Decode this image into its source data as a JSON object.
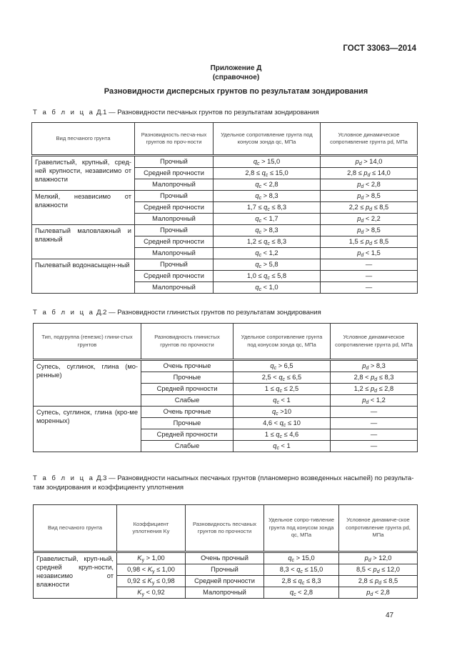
{
  "header": {
    "standard": "ГОСТ 33063—2014"
  },
  "appendix": {
    "title": "Приложение Д",
    "subtitle": "(справочное)",
    "heading": "Разновидности дисперсных грунтов по результатам зондирования"
  },
  "table1": {
    "label": "Т а б л и ц а",
    "caption": "Д.1 — Разновидности песчаных грунтов по результатам зондирования",
    "headers": [
      "Вид песчаного грунта",
      "Разновидность песча-ных грунтов по проч-ности",
      "Удельное сопротивление грунта под конусом зонда q",
      "Условное динамическое сопротивление грунта p"
    ],
    "header_units": [
      "",
      "",
      "c, МПа",
      "d, МПа"
    ],
    "groups": [
      {
        "soil": "Гравелистый, крупный, сред-ней крупности, независимо от влажности",
        "rows": [
          {
            "strength": "Прочный",
            "qc": {
              "pre": "",
              "v": "q",
              "s": "c",
              "post": " > 15,0"
            },
            "pd": {
              "pre": "",
              "v": "p",
              "s": "d",
              "post": " > 14,0"
            }
          },
          {
            "strength": "Средней прочности",
            "qc": {
              "pre": "2,8 ≤ ",
              "v": "q",
              "s": "c",
              "post": " ≤ 15,0"
            },
            "pd": {
              "pre": "2,8 ≤ ",
              "v": "p",
              "s": "d",
              "post": " ≤ 14,0"
            }
          },
          {
            "strength": "Малопрочный",
            "qc": {
              "pre": "",
              "v": "q",
              "s": "c",
              "post": " < 2,8"
            },
            "pd": {
              "pre": "",
              "v": "p",
              "s": "d",
              "post": " < 2,8"
            }
          }
        ]
      },
      {
        "soil": "Мелкий, независимо от влажности",
        "rows": [
          {
            "strength": "Прочный",
            "qc": {
              "pre": "",
              "v": "q",
              "s": "c",
              "post": " > 8,3"
            },
            "pd": {
              "pre": "",
              "v": "p",
              "s": "d",
              "post": " > 8,5"
            }
          },
          {
            "strength": "Средней прочности",
            "qc": {
              "pre": "1,7 ≤ ",
              "v": "q",
              "s": "c",
              "post": " ≤ 8,3"
            },
            "pd": {
              "pre": "2,2 ≤ ",
              "v": "p",
              "s": "d",
              "post": " ≤ 8,5"
            }
          },
          {
            "strength": "Малопрочный",
            "qc": {
              "pre": "",
              "v": "q",
              "s": "c",
              "post": " < 1,7"
            },
            "pd": {
              "pre": "",
              "v": "p",
              "s": "d",
              "post": " < 2,2"
            }
          }
        ]
      },
      {
        "soil": "Пылеватый маловлажный и влажный",
        "rows": [
          {
            "strength": "Прочный",
            "qc": {
              "pre": "",
              "v": "q",
              "s": "c",
              "post": " > 8,3"
            },
            "pd": {
              "pre": "",
              "v": "p",
              "s": "d",
              "post": " > 8,5"
            }
          },
          {
            "strength": "Средней прочности",
            "qc": {
              "pre": "1,2 ≤ ",
              "v": "q",
              "s": "c",
              "post": " ≤ 8,3"
            },
            "pd": {
              "pre": "1,5 ≤ ",
              "v": "p",
              "s": "d",
              "post": " ≤ 8,5"
            }
          },
          {
            "strength": "Малопрочный",
            "qc": {
              "pre": "",
              "v": "q",
              "s": "c",
              "post": " < 1,2"
            },
            "pd": {
              "pre": "",
              "v": "p",
              "s": "d",
              "post": " < 1,5"
            }
          }
        ]
      },
      {
        "soil": "Пылеватый водонасыщен-ный",
        "rows": [
          {
            "strength": "Прочный",
            "qc": {
              "pre": "",
              "v": "q",
              "s": "c",
              "post": " > 5,8"
            },
            "pd": {
              "pre": "—"
            }
          },
          {
            "strength": "Средней прочности",
            "qc": {
              "pre": "1,0 ≤ ",
              "v": "q",
              "s": "c",
              "post": " ≤ 5,8"
            },
            "pd": {
              "pre": "—"
            }
          },
          {
            "strength": "Малопрочный",
            "qc": {
              "pre": "",
              "v": "q",
              "s": "c",
              "post": " < 1,0"
            },
            "pd": {
              "pre": "—"
            }
          }
        ]
      }
    ]
  },
  "table2": {
    "label": "Т а б л и ц а",
    "caption": "Д.2 — Разновидности глинистых грунтов по результатам зондирования",
    "headers": [
      "Тип, подгруппа (генезис) глини-стых грунтов",
      "Разновидность глинистых грунтов по прочности",
      "Удельное сопротивление грунта под конусом зонда q",
      "Условное динамическое сопротивление грунта p"
    ],
    "header_units": [
      "",
      "",
      "c, МПа",
      "d, МПа"
    ],
    "groups": [
      {
        "soil": "Супесь, суглинок, глина (мо-ренные)",
        "rows": [
          {
            "strength": "Очень прочные",
            "qc": {
              "pre": "",
              "v": "q",
              "s": "c",
              "post": " > 6,5"
            },
            "pd": {
              "pre": "",
              "v": "p",
              "s": "d",
              "post": " > 8,3"
            }
          },
          {
            "strength": "Прочные",
            "qc": {
              "pre": "2,5 < ",
              "v": "q",
              "s": "c",
              "post": " ≤ 6,5"
            },
            "pd": {
              "pre": "2,8 < ",
              "v": "p",
              "s": "d",
              "post": " ≤ 8,3"
            }
          },
          {
            "strength": "Средней прочности",
            "qc": {
              "pre": "1 ≤ ",
              "v": "q",
              "s": "c",
              "post": " ≤ 2,5"
            },
            "pd": {
              "pre": "1,2 ≤ ",
              "v": "p",
              "s": "d",
              "post": " ≤ 2,8"
            }
          },
          {
            "strength": "Слабые",
            "qc": {
              "pre": "",
              "v": "q",
              "s": "c",
              "post": " < 1"
            },
            "pd": {
              "pre": "",
              "v": "p",
              "s": "d",
              "post": " < 1,2"
            }
          }
        ]
      },
      {
        "soil": "Супесь, суглинок, глина (кро-ме моренных)",
        "rows": [
          {
            "strength": "Очень прочные",
            "qc": {
              "pre": "",
              "v": "q",
              "s": "c",
              "post": " >10"
            },
            "pd": {
              "pre": "—"
            }
          },
          {
            "strength": "Прочные",
            "qc": {
              "pre": "4,6 < ",
              "v": "q",
              "s": "c",
              "post": " ≤ 10"
            },
            "pd": {
              "pre": "—"
            }
          },
          {
            "strength": "Средней прочности",
            "qc": {
              "pre": "1 ≤ ",
              "v": "q",
              "s": "c",
              "post": " ≤ 4,6"
            },
            "pd": {
              "pre": "—"
            }
          },
          {
            "strength": "Слабые",
            "qc": {
              "pre": "",
              "v": "q",
              "s": "c",
              "post": " < 1"
            },
            "pd": {
              "pre": "—"
            }
          }
        ]
      }
    ]
  },
  "table3": {
    "label": "Т а б л и ц а",
    "caption": "Д.3 — Разновидности насыпных песчаных грунтов (планомерно возведенных насыпей) по результа-там зондирования и коэффициенту уплотнения",
    "headers": [
      "Вид песчаного грунта",
      "Коэффициент уплотнения K",
      "Разновидность песчаных грунтов по прочности",
      "Удельное сопро-тивление грунта под конусом зонда q",
      "Условное динамиче-ское сопротивление грунта p"
    ],
    "header_units": [
      "",
      "у",
      "",
      "c, МПа",
      "d, МПа"
    ],
    "groups": [
      {
        "soil": "Гравелистый, круп-ный, средней круп-ности, независимо от влажности",
        "rows": [
          {
            "ky": {
              "pre": "",
              "v": "K",
              "s": "у",
              "post": " > 1,00"
            },
            "strength": "Очень прочный",
            "qc": {
              "pre": "",
              "v": "q",
              "s": "c",
              "post": " > 15,0"
            },
            "pd": {
              "pre": "",
              "v": "p",
              "s": "d",
              "post": " > 12,0"
            }
          },
          {
            "ky": {
              "pre": "0,98 < ",
              "v": "K",
              "s": "у",
              "post": " ≤ 1,00"
            },
            "strength": "Прочный",
            "qc": {
              "pre": "8,3 < ",
              "v": "q",
              "s": "c",
              "post": " ≤ 15,0"
            },
            "pd": {
              "pre": "8,5 < ",
              "v": "p",
              "s": "d",
              "post": " ≤ 12,0"
            }
          },
          {
            "ky": {
              "pre": "0,92 ≤ ",
              "v": "K",
              "s": "у",
              "post": " ≤ 0,98"
            },
            "strength": "Средней прочности",
            "qc": {
              "pre": "2,8 ≤ ",
              "v": "q",
              "s": "c",
              "post": " ≤ 8,3"
            },
            "pd": {
              "pre": "2,8 ≤ ",
              "v": "p",
              "s": "d",
              "post": " ≤ 8,5"
            }
          },
          {
            "ky": {
              "pre": "",
              "v": "K",
              "s": "у",
              "post": " < 0,92"
            },
            "strength": "Малопрочный",
            "qc": {
              "pre": "",
              "v": "q",
              "s": "c",
              "post": " < 2,8"
            },
            "pd": {
              "pre": "",
              "v": "p",
              "s": "d",
              "post": " < 2,8"
            }
          }
        ]
      }
    ]
  },
  "footer": {
    "page_number": "47"
  }
}
